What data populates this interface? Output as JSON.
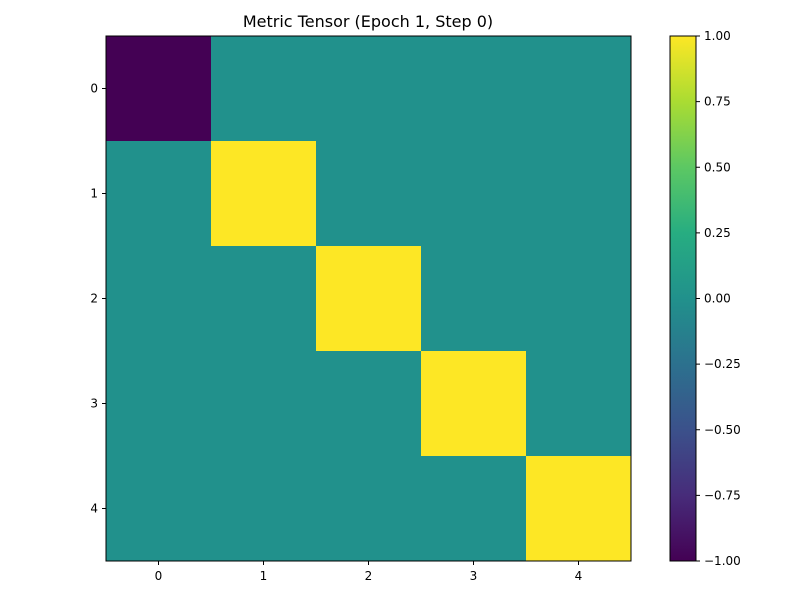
{
  "chart_data": {
    "type": "heatmap",
    "title": "Metric Tensor (Epoch 1, Step 0)",
    "xlabel": "",
    "ylabel": "",
    "x_categories": [
      "0",
      "1",
      "2",
      "3",
      "4"
    ],
    "y_categories": [
      "0",
      "1",
      "2",
      "3",
      "4"
    ],
    "matrix": [
      [
        -1,
        0,
        0,
        0,
        0
      ],
      [
        0,
        1,
        0,
        0,
        0
      ],
      [
        0,
        0,
        1,
        0,
        0
      ],
      [
        0,
        0,
        0,
        1,
        0
      ],
      [
        0,
        0,
        0,
        0,
        1
      ]
    ],
    "colormap": "viridis",
    "vmin": -1.0,
    "vmax": 1.0,
    "colorbar": {
      "ticks": [
        -1.0,
        -0.75,
        -0.5,
        -0.25,
        0.0,
        0.25,
        0.5,
        0.75,
        1.0
      ],
      "tick_labels": [
        "−1.00",
        "−0.75",
        "−0.50",
        "−0.25",
        "0.00",
        "0.25",
        "0.50",
        "0.75",
        "1.00"
      ]
    },
    "grid": false,
    "colors": {
      "low": "#440154",
      "mid": "#21918c",
      "high": "#fde725"
    }
  }
}
